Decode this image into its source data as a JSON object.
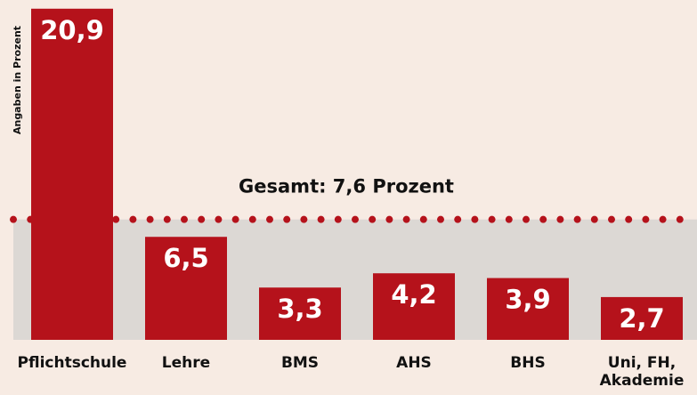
{
  "chart_data": {
    "type": "bar",
    "y_label": "Angaben in Prozent",
    "categories": [
      "Pflichtschule",
      "Lehre",
      "BMS",
      "AHS",
      "BHS",
      "Uni, FH, Akademie"
    ],
    "values": [
      20.9,
      6.5,
      3.3,
      4.2,
      3.9,
      2.7
    ],
    "value_labels": [
      "20,9",
      "6,5",
      "3,3",
      "4,2",
      "3,9",
      "2,7"
    ],
    "color": "#b5121b",
    "average": 7.6,
    "average_label": "Gesamt: 7,6 Prozent",
    "ylim": [
      0,
      21
    ]
  }
}
